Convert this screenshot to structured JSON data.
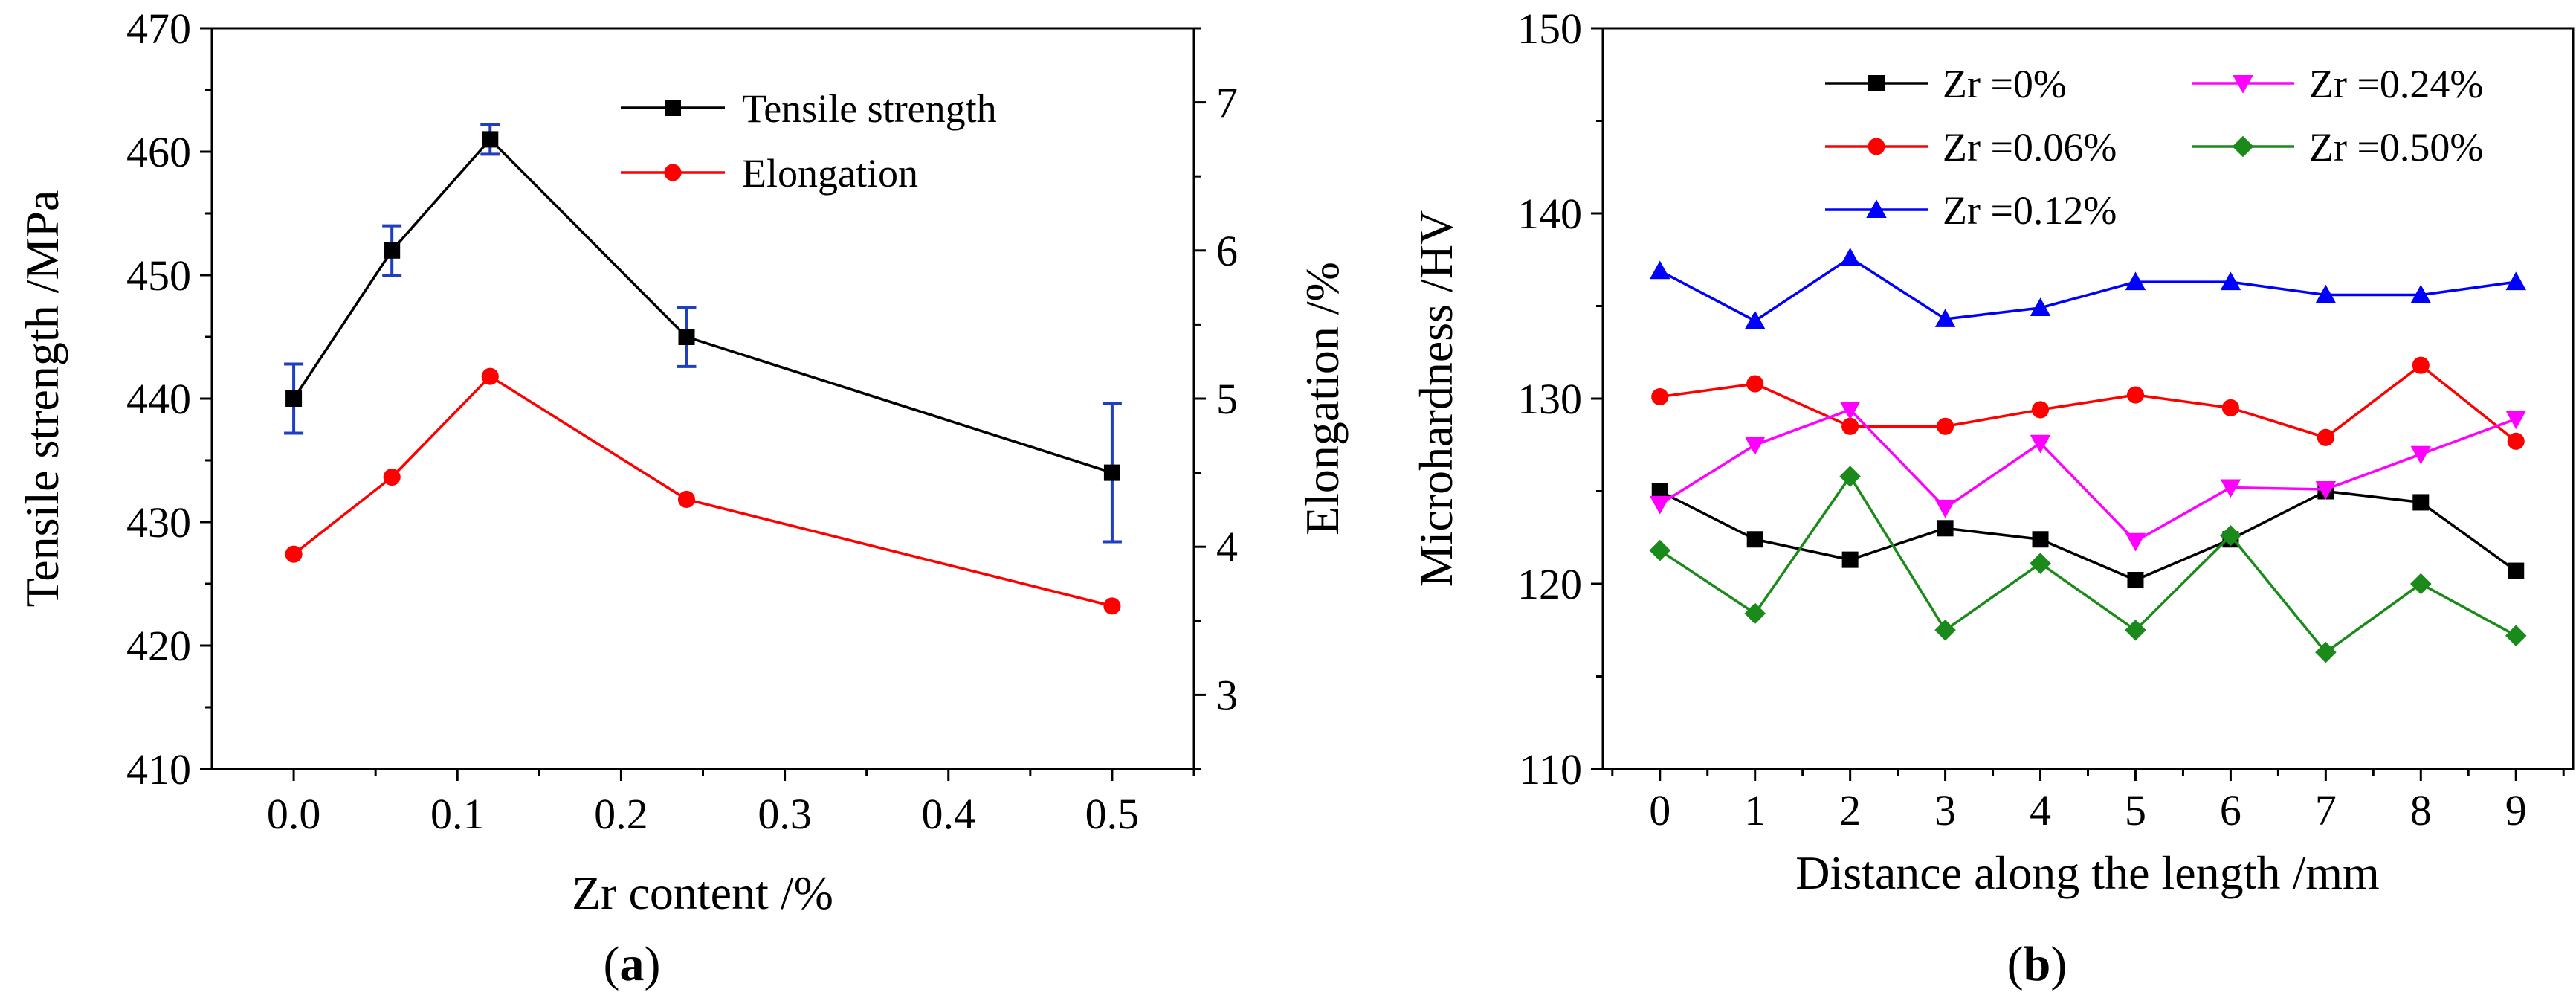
{
  "chart_data": [
    {
      "panel": "(a)",
      "panel_prefix": "(",
      "panel_letter": "a",
      "panel_suffix": ")",
      "type": "line",
      "xlabel": "Zr content /%",
      "ylabel": "Tensile strength /MPa",
      "y2label": "Elongation /%",
      "xlim": [
        -0.05,
        0.55
      ],
      "ylim": [
        410,
        470
      ],
      "y2lim": [
        2.5,
        7.5
      ],
      "xticks": [
        0.0,
        0.1,
        0.2,
        0.3,
        0.4,
        0.5
      ],
      "xtick_labels": [
        "0.0",
        "0.1",
        "0.2",
        "0.3",
        "0.4",
        "0.5"
      ],
      "yticks": [
        410,
        420,
        430,
        440,
        450,
        460,
        470
      ],
      "ytick_labels": [
        "410",
        "420",
        "430",
        "440",
        "450",
        "460",
        "470"
      ],
      "y2ticks": [
        3,
        4,
        5,
        6,
        7
      ],
      "y2tick_labels": [
        "3",
        "4",
        "5",
        "6",
        "7"
      ],
      "legend_position": "top-right",
      "series": [
        {
          "name": "Tensile strength",
          "axis": "left",
          "color": "#000000",
          "marker": "square",
          "x": [
            0.0,
            0.06,
            0.12,
            0.24,
            0.5
          ],
          "values": [
            440,
            452,
            461,
            445,
            434
          ],
          "error": [
            2.8,
            2.0,
            1.2,
            2.4,
            5.6
          ],
          "error_color": "#1f3fbf"
        },
        {
          "name": "Elongation",
          "axis": "right",
          "color": "#ff0000",
          "marker": "circle",
          "x": [
            0.0,
            0.06,
            0.12,
            0.24,
            0.5
          ],
          "values": [
            3.95,
            4.47,
            5.15,
            4.32,
            3.6
          ]
        }
      ]
    },
    {
      "panel": "(b)",
      "panel_prefix": "(",
      "panel_letter": "b",
      "panel_suffix": ")",
      "type": "line",
      "xlabel": "Distance along the length /mm",
      "ylabel": "Microhardness /HV",
      "xlim": [
        -0.6,
        9.6
      ],
      "ylim": [
        110,
        150
      ],
      "xticks": [
        0,
        1,
        2,
        3,
        4,
        5,
        6,
        7,
        8,
        9
      ],
      "xtick_labels": [
        "0",
        "1",
        "2",
        "3",
        "4",
        "5",
        "6",
        "7",
        "8",
        "9"
      ],
      "yticks": [
        110,
        120,
        130,
        140,
        150
      ],
      "ytick_labels": [
        "110",
        "120",
        "130",
        "140",
        "150"
      ],
      "legend_position": "top",
      "series": [
        {
          "name": "Zr =0%",
          "color": "#000000",
          "marker": "square",
          "x": [
            0,
            1,
            2,
            3,
            4,
            5,
            6,
            7,
            8,
            9
          ],
          "values": [
            125.0,
            122.4,
            121.3,
            123.0,
            122.4,
            120.2,
            122.4,
            125.0,
            124.4,
            120.7
          ]
        },
        {
          "name": "Zr =0.06%",
          "color": "#ff0000",
          "marker": "circle",
          "x": [
            0,
            1,
            2,
            3,
            4,
            5,
            6,
            7,
            8,
            9
          ],
          "values": [
            130.1,
            130.8,
            128.5,
            128.5,
            129.4,
            130.2,
            129.5,
            127.9,
            131.8,
            127.7
          ]
        },
        {
          "name": "Zr =0.12%",
          "color": "#0000ff",
          "marker": "triangle-up",
          "x": [
            0,
            1,
            2,
            3,
            4,
            5,
            6,
            7,
            8,
            9
          ],
          "values": [
            136.9,
            134.2,
            137.6,
            134.3,
            134.9,
            136.3,
            136.3,
            135.6,
            135.6,
            136.3
          ]
        },
        {
          "name": "Zr =0.24%",
          "color": "#ff00ff",
          "marker": "triangle-down",
          "x": [
            0,
            1,
            2,
            3,
            4,
            5,
            6,
            7,
            8,
            9
          ],
          "values": [
            124.3,
            127.5,
            129.4,
            124.1,
            127.6,
            122.3,
            125.2,
            125.1,
            127.0,
            128.9
          ]
        },
        {
          "name": "Zr =0.50%",
          "color": "#1a8a1a",
          "marker": "diamond",
          "x": [
            0,
            1,
            2,
            3,
            4,
            5,
            6,
            7,
            8,
            9
          ],
          "values": [
            121.8,
            118.4,
            125.8,
            117.5,
            121.1,
            117.5,
            122.6,
            116.3,
            120.0,
            117.2
          ]
        }
      ]
    }
  ]
}
